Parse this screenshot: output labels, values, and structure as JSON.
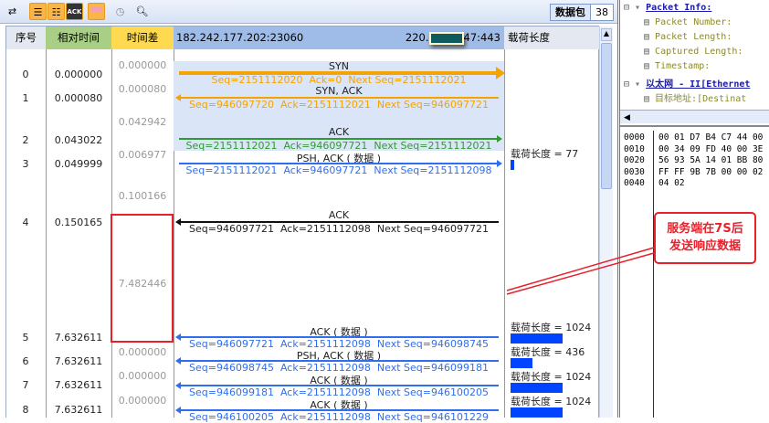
{
  "toolbar": {
    "icons": [
      "export-icon",
      "list-icon",
      "list-play-icon",
      "ack-icon",
      "color-icon",
      "clock-icon",
      "search-icon"
    ],
    "ack_label": "ACK",
    "packets_label": "数据包",
    "packets_count": "38"
  },
  "header": {
    "col_seq": "序号",
    "col_rel_time": "相对时间",
    "col_time_diff": "时间差",
    "src_endpoint": "182.242.177.202:23060",
    "dst_endpoint_prefix": "220.",
    "dst_endpoint_suffix": "47:443",
    "col_payload": "载荷长度"
  },
  "colors": {
    "syn": "#f5a300",
    "green": "#2e9b2e",
    "blue": "#2f6fef",
    "black": "#111111",
    "highlight": "#dbe5f8",
    "annotation": "#e8202a"
  },
  "rows": [
    {
      "seq": "0",
      "rel_time": "0.000000"
    },
    {
      "seq": "1",
      "rel_time": "0.000080"
    },
    {
      "seq": "2",
      "rel_time": "0.043022"
    },
    {
      "seq": "3",
      "rel_time": "0.049999"
    },
    {
      "seq": "4",
      "rel_time": "0.150165"
    },
    {
      "seq": "5",
      "rel_time": "7.632611"
    },
    {
      "seq": "6",
      "rel_time": "7.632611"
    },
    {
      "seq": "7",
      "rel_time": "7.632611"
    },
    {
      "seq": "8",
      "rel_time": "7.632611"
    }
  ],
  "time_diffs": [
    "0.000000",
    "0.000080",
    "0.042942",
    "0.006977",
    "0.100166",
    "7.482446",
    "0.000000",
    "0.000000",
    "0.000000"
  ],
  "flows": [
    {
      "label": "SYN",
      "detail": "Seq=2151112020  Ack=0  Next Seq=2151112021",
      "direction": "right",
      "color": "syn"
    },
    {
      "label": "SYN, ACK",
      "detail": "Seq=946097720  Ack=2151112021  Next Seq=946097721",
      "direction": "left",
      "color": "syn"
    },
    {
      "label": "ACK",
      "detail": "Seq=2151112021  Ack=946097721  Next Seq=2151112021",
      "direction": "right",
      "color": "green"
    },
    {
      "label": "PSH, ACK ( 数据 )",
      "detail": "Seq=2151112021  Ack=946097721  Next Seq=2151112098",
      "direction": "right",
      "color": "blue"
    },
    {
      "label": "ACK",
      "detail": "Seq=946097721  Ack=2151112098  Next Seq=946097721",
      "direction": "left",
      "color": "black"
    },
    {
      "label": "ACK ( 数据 )",
      "detail": "Seq=946097721  Ack=2151112098  Next Seq=946098745",
      "direction": "left",
      "color": "blue"
    },
    {
      "label": "PSH, ACK ( 数据 )",
      "detail": "Seq=946098745  Ack=2151112098  Next Seq=946099181",
      "direction": "left",
      "color": "blue"
    },
    {
      "label": "ACK ( 数据 )",
      "detail": "Seq=946099181  Ack=2151112098  Next Seq=946100205",
      "direction": "left",
      "color": "blue"
    },
    {
      "label": "ACK ( 数据 )",
      "detail": "Seq=946100205  Ack=2151112098  Next Seq=946101229",
      "direction": "left",
      "color": "blue"
    }
  ],
  "payloads": [
    {
      "text": "载荷长度 = 77",
      "value": 77
    },
    {
      "text": "载荷长度 = 1024",
      "value": 1024
    },
    {
      "text": "载荷长度 = 436",
      "value": 436
    },
    {
      "text": "载荷长度 = 1024",
      "value": 1024
    },
    {
      "text": "载荷长度 = 1024",
      "value": 1024
    }
  ],
  "tree": [
    {
      "text": "Packet Info:",
      "level": 0,
      "bold": true
    },
    {
      "text": "Packet Number:",
      "level": 1
    },
    {
      "text": "Packet Length:",
      "level": 1
    },
    {
      "text": "Captured Length:",
      "level": 1
    },
    {
      "text": "Timestamp:",
      "level": 1
    },
    {
      "text": "以太网 - II[Ethernet",
      "level": 0,
      "bold": true
    },
    {
      "text": "目标地址:[Destinat",
      "level": 1
    }
  ],
  "hex": [
    {
      "offset": "0000",
      "bytes": "00 01 D7 B4 C7 44 00"
    },
    {
      "offset": "0010",
      "bytes": "00 34 09 FD 40 00 3E"
    },
    {
      "offset": "0020",
      "bytes": "56 93 5A 14 01 BB 80"
    },
    {
      "offset": "0030",
      "bytes": "FF FF 9B 7B 00 00 02"
    },
    {
      "offset": "0040",
      "bytes": "04 02"
    }
  ],
  "annotation": {
    "line1": "服务端在7S后",
    "line2": "发送响应数据"
  }
}
